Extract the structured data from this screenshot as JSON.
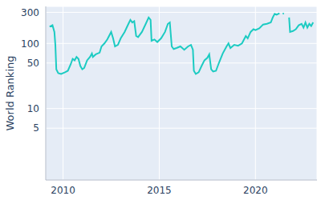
{
  "chart_data": {
    "type": "line",
    "y_label": "World Ranking",
    "color": "#1ccbc2",
    "log": "y",
    "grid": true,
    "xlim": [
      2009.1,
      2023.2
    ],
    "xticks": [
      2010,
      2015,
      2020
    ],
    "ylim": [
      0.8,
      370
    ],
    "yticks": [
      5,
      10,
      50,
      100,
      300
    ],
    "x": [
      2009.3,
      2009.45,
      2009.55,
      2009.6,
      2009.65,
      2009.75,
      2009.9,
      2010.1,
      2010.25,
      2010.4,
      2010.5,
      2010.6,
      2010.7,
      2010.8,
      2010.9,
      2011.0,
      2011.1,
      2011.25,
      2011.4,
      2011.5,
      2011.55,
      2011.7,
      2011.9,
      2012.0,
      2012.15,
      2012.3,
      2012.5,
      2012.6,
      2012.7,
      2012.85,
      2013.0,
      2013.2,
      2013.4,
      2013.5,
      2013.6,
      2013.7,
      2013.8,
      2013.9,
      2014.1,
      2014.3,
      2014.45,
      2014.55,
      2014.6,
      2014.75,
      2014.9,
      2015.1,
      2015.3,
      2015.45,
      2015.55,
      2015.65,
      2015.75,
      2015.9,
      2016.1,
      2016.3,
      2016.5,
      2016.65,
      2016.75,
      2016.8,
      2016.9,
      2017.05,
      2017.2,
      2017.35,
      2017.5,
      2017.6,
      2017.7,
      2017.8,
      2017.95,
      2018.1,
      2018.3,
      2018.5,
      2018.6,
      2018.7,
      2018.9,
      2019.1,
      2019.3,
      2019.5,
      2019.6,
      2019.75,
      2019.9,
      2020.0,
      2020.2,
      2020.4,
      2020.6,
      2020.8,
      2020.9,
      2021.0,
      2021.1,
      2021.25,
      2021.3,
      2021.42,
      2021.48,
      2021.55,
      2021.75,
      2021.8,
      2021.95,
      2022.1,
      2022.25,
      2022.4,
      2022.5,
      2022.6,
      2022.7,
      2022.8,
      2022.9,
      2023.0
    ],
    "values": [
      180,
      190,
      150,
      95,
      40,
      35,
      34,
      36,
      38,
      48,
      58,
      55,
      62,
      58,
      45,
      40,
      42,
      55,
      62,
      70,
      62,
      68,
      72,
      90,
      100,
      115,
      150,
      120,
      90,
      95,
      120,
      150,
      200,
      230,
      210,
      220,
      130,
      125,
      150,
      200,
      250,
      230,
      110,
      115,
      105,
      120,
      150,
      200,
      210,
      90,
      82,
      85,
      90,
      80,
      90,
      95,
      80,
      38,
      34,
      36,
      45,
      55,
      60,
      68,
      40,
      37,
      38,
      50,
      70,
      90,
      100,
      85,
      95,
      92,
      100,
      130,
      120,
      150,
      165,
      160,
      170,
      195,
      200,
      210,
      250,
      285,
      275,
      290,
      null,
      285,
      290,
      null,
      250,
      150,
      155,
      165,
      190,
      200,
      175,
      210,
      175,
      200,
      185,
      210
    ]
  }
}
